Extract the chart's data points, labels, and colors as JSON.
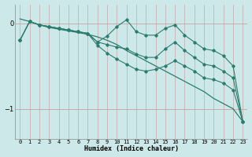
{
  "xlabel": "Humidex (Indice chaleur)",
  "xlim": [
    -0.5,
    23.5
  ],
  "ylim": [
    -1.35,
    0.22
  ],
  "yticks": [
    0,
    -1
  ],
  "xticks": [
    0,
    1,
    2,
    3,
    4,
    5,
    6,
    7,
    8,
    9,
    10,
    11,
    12,
    13,
    14,
    15,
    16,
    17,
    18,
    19,
    20,
    21,
    22,
    23
  ],
  "bg_color": "#cde8e8",
  "line_color": "#2a7d6e",
  "grid_color": "#b8d8d8",
  "lines": [
    {
      "y": [
        0.05,
        0.02,
        -0.02,
        -0.05,
        -0.07,
        -0.09,
        -0.11,
        -0.13,
        -0.16,
        -0.2,
        -0.25,
        -0.32,
        -0.38,
        -0.44,
        -0.5,
        -0.56,
        -0.62,
        -0.68,
        -0.74,
        -0.8,
        -0.88,
        -0.94,
        -1.0,
        -1.15
      ],
      "marker": false
    },
    {
      "y": [
        -0.2,
        0.02,
        -0.02,
        -0.04,
        -0.06,
        -0.08,
        -0.1,
        -0.12,
        -0.22,
        -0.15,
        -0.04,
        0.04,
        -0.1,
        -0.14,
        -0.14,
        -0.06,
        -0.02,
        -0.14,
        -0.22,
        -0.3,
        -0.32,
        -0.38,
        -0.5,
        -1.15
      ],
      "marker": true
    },
    {
      "y": [
        -0.2,
        0.02,
        -0.02,
        -0.04,
        -0.06,
        -0.08,
        -0.1,
        -0.12,
        -0.22,
        -0.25,
        -0.28,
        -0.3,
        -0.36,
        -0.4,
        -0.4,
        -0.3,
        -0.22,
        -0.32,
        -0.4,
        -0.48,
        -0.5,
        -0.56,
        -0.64,
        -1.15
      ],
      "marker": true
    },
    {
      "y": [
        -0.2,
        0.02,
        -0.02,
        -0.04,
        -0.06,
        -0.08,
        -0.1,
        -0.12,
        -0.26,
        -0.35,
        -0.42,
        -0.48,
        -0.54,
        -0.56,
        -0.54,
        -0.5,
        -0.44,
        -0.5,
        -0.56,
        -0.64,
        -0.66,
        -0.7,
        -0.78,
        -1.15
      ],
      "marker": true
    }
  ]
}
